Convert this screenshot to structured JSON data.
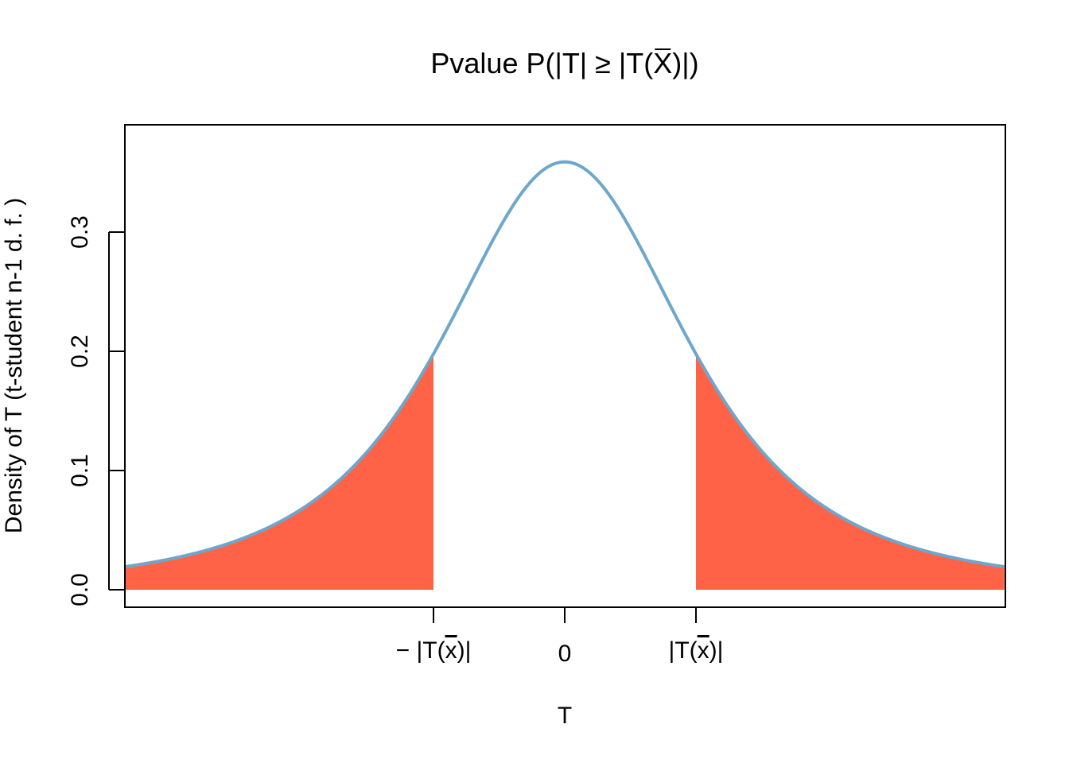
{
  "chart_data": {
    "type": "area",
    "title_prefix": "Pvalue P(|T| ≥ |T(",
    "title_var": "X",
    "title_suffix": ")|)",
    "xlabel": "T",
    "ylabel": "Density of T (t-student n-1 d. f. )",
    "xlim": [
      -3.35,
      3.35
    ],
    "ylim": [
      0,
      0.375
    ],
    "grid": false,
    "legend": "none",
    "distribution": {
      "name": "t-student",
      "df": 2.3
    },
    "critical_value": 1.0,
    "x_ticks": [
      {
        "value": -1.0,
        "prefix": "− |T(",
        "var": "x",
        "suffix": ")|"
      },
      {
        "value": 0,
        "prefix": "0",
        "var": "",
        "suffix": ""
      },
      {
        "value": 1.0,
        "prefix": "|T(",
        "var": "x",
        "suffix": ")|"
      }
    ],
    "y_ticks": [
      "0.0",
      "0.1",
      "0.2",
      "0.3"
    ],
    "series": [
      {
        "kind": "density-curve",
        "color": "#6ea6cc"
      },
      {
        "kind": "tail-fill",
        "color": "#ff6347"
      }
    ]
  }
}
